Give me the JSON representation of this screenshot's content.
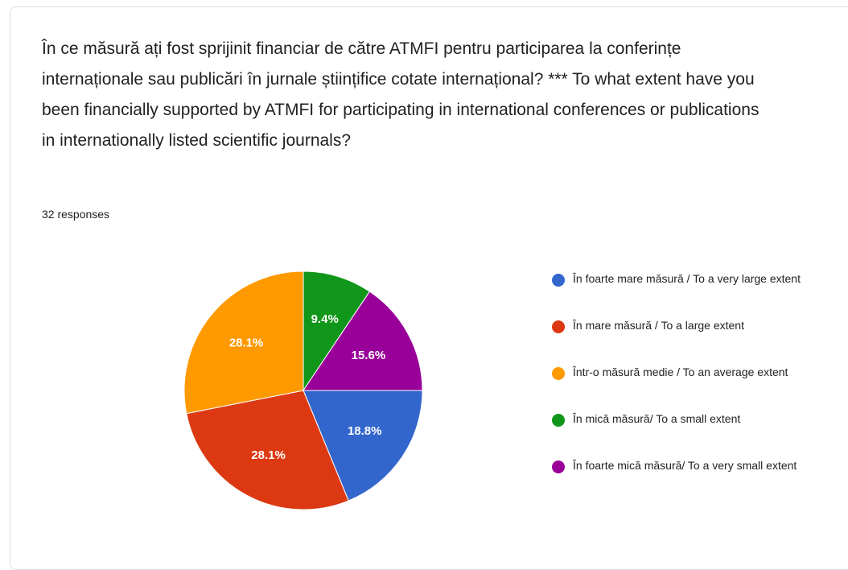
{
  "chart_data": {
    "type": "pie",
    "title": "În ce măsură ați fost sprijinit financiar de către ATMFI pentru participarea la conferințe internaționale sau publicări în jurnale științifice cotate internațional? *** To what extent have you been financially supported by ATMFI for participating in international conferences or publications in internationally listed scientific journals?",
    "subtitle": "32 responses",
    "categories": [
      "În foarte mare măsură / To a very large extent",
      "În mare măsură / To a large extent",
      "Într-o măsură medie / To an average extent",
      "În mică măsură/ To a small extent",
      "În foarte mică măsură/ To a very small extent"
    ],
    "values": [
      18.8,
      28.1,
      28.1,
      9.4,
      15.6
    ],
    "value_labels": [
      "18.8%",
      "28.1%",
      "28.1%",
      "9.4%",
      "15.6%"
    ],
    "colors": [
      "#3366cc",
      "#dc3912",
      "#ff9900",
      "#109618",
      "#990099"
    ],
    "legend": "right"
  }
}
